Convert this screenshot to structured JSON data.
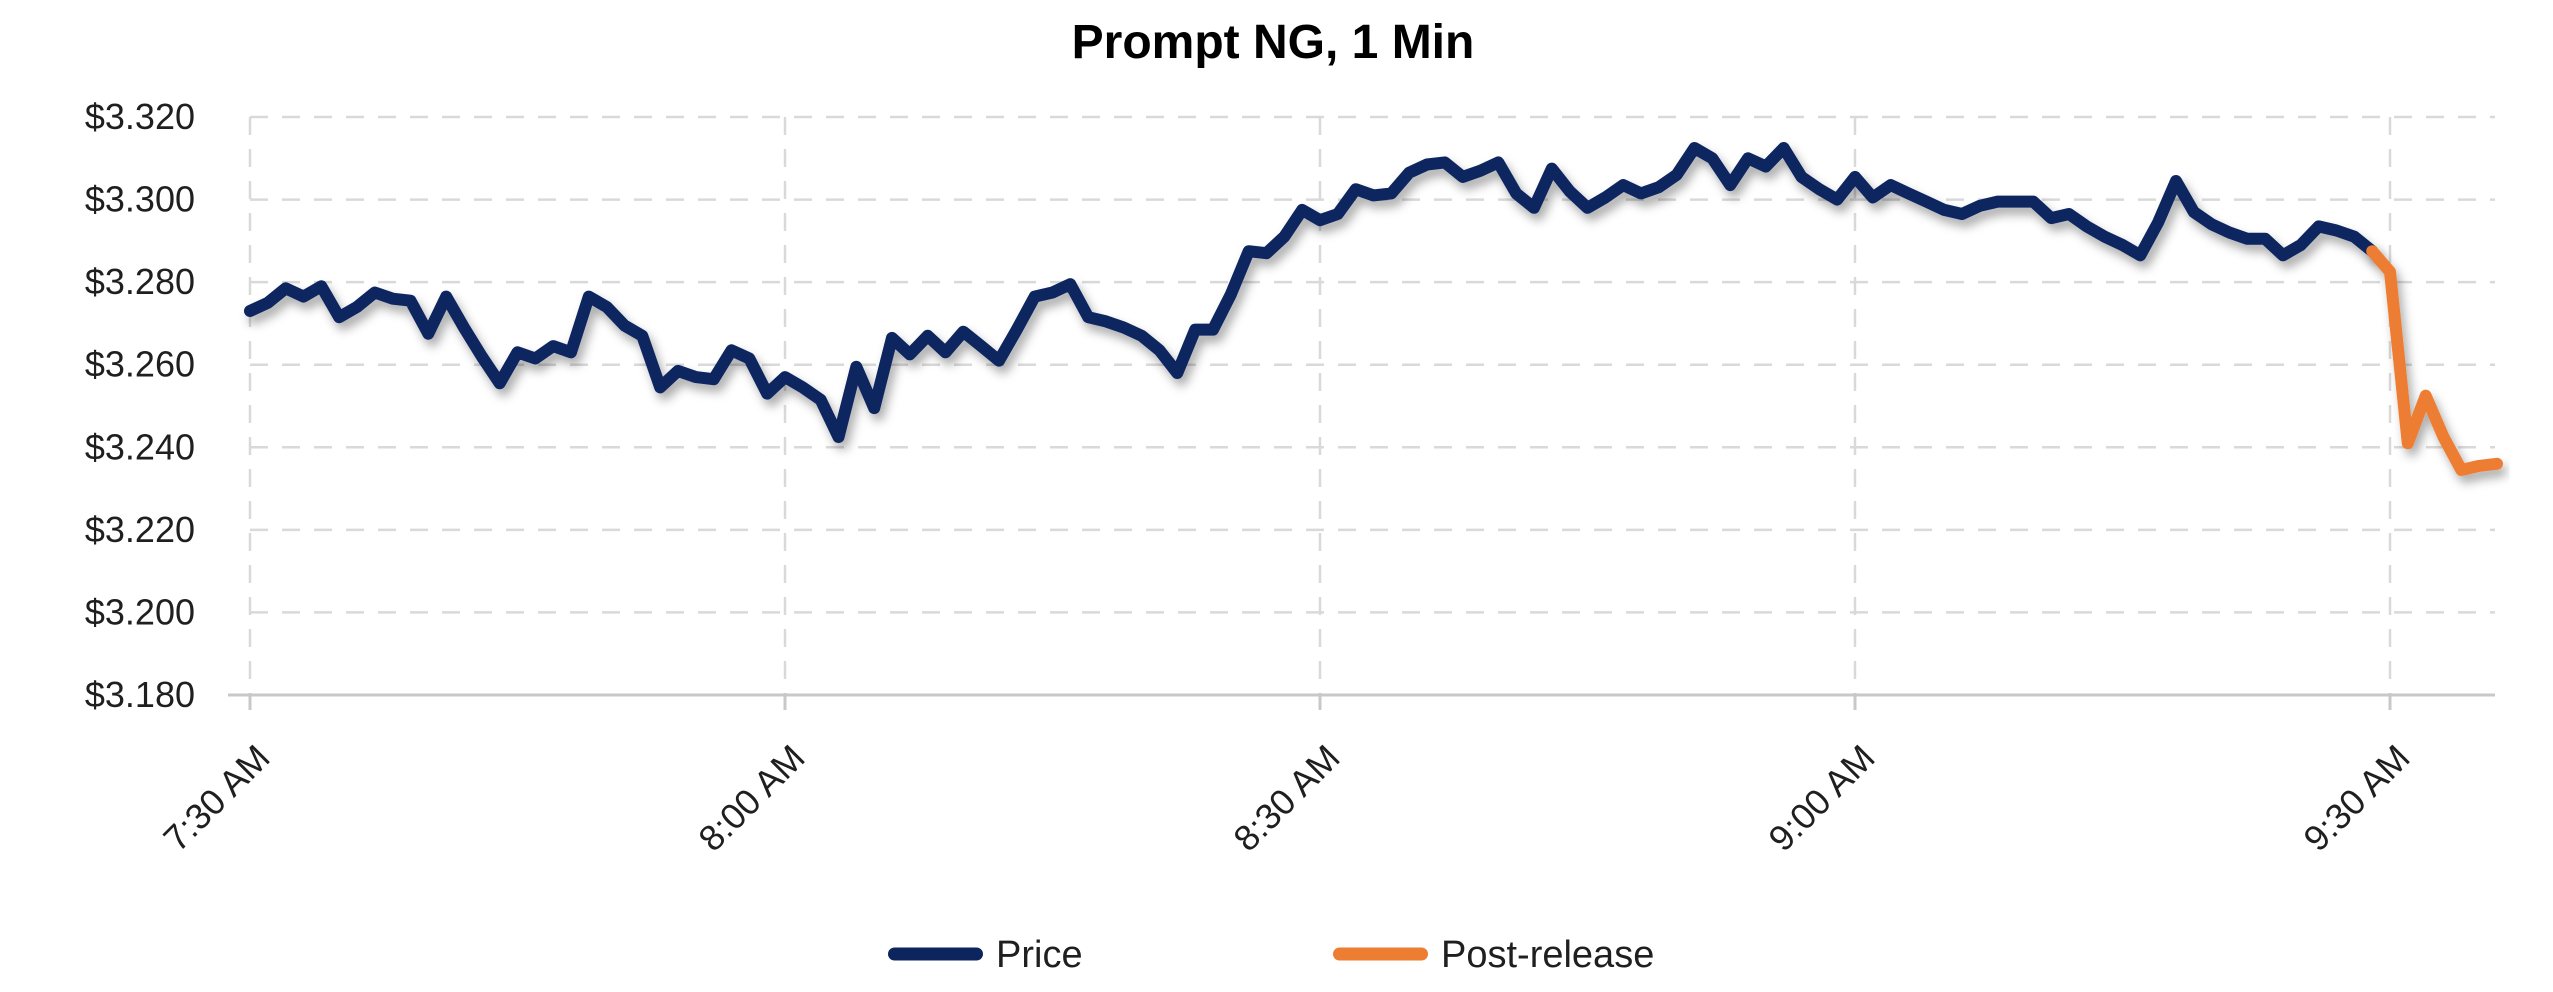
{
  "title": "Prompt NG, 1 Min",
  "chart_data": {
    "type": "line",
    "title": "Prompt NG, 1 Min",
    "grid": "dashed",
    "legend_position": "bottom",
    "x_axis": {
      "start_time": "7:30 AM",
      "interval_minutes": 1,
      "ticks": [
        {
          "label": "7:30 AM",
          "minute": 0
        },
        {
          "label": "8:00 AM",
          "minute": 30
        },
        {
          "label": "8:30 AM",
          "minute": 60
        },
        {
          "label": "9:00 AM",
          "minute": 90
        },
        {
          "label": "9:30 AM",
          "minute": 120
        }
      ],
      "total_minutes": 126
    },
    "y_axis": {
      "min": 3.18,
      "max": 3.32,
      "step": 0.02,
      "tick_labels": [
        "$3.320",
        "$3.300",
        "$3.280",
        "$3.260",
        "$3.240",
        "$3.220",
        "$3.200",
        "$3.180"
      ],
      "tick_values": [
        3.32,
        3.3,
        3.28,
        3.26,
        3.24,
        3.22,
        3.2,
        3.18
      ]
    },
    "series": [
      {
        "name": "Price",
        "color": "#0D255F",
        "start_minute": 0,
        "values": [
          3.273,
          3.275,
          3.2785,
          3.2765,
          3.279,
          3.2715,
          3.274,
          3.2775,
          3.276,
          3.2755,
          3.2675,
          3.2765,
          3.269,
          3.262,
          3.2555,
          3.263,
          3.2615,
          3.2645,
          3.263,
          3.2765,
          3.274,
          3.2695,
          3.267,
          3.2545,
          3.2585,
          3.257,
          3.2565,
          3.2635,
          3.2615,
          3.253,
          3.257,
          3.2545,
          3.2515,
          3.2425,
          3.2595,
          3.2495,
          3.2665,
          3.2625,
          3.267,
          3.263,
          3.268,
          3.2645,
          3.261,
          3.2685,
          3.2765,
          3.2775,
          3.2795,
          3.2715,
          3.2705,
          3.269,
          3.267,
          3.2635,
          3.258,
          3.2685,
          3.2685,
          3.277,
          3.2875,
          3.287,
          3.291,
          3.2975,
          3.295,
          3.2965,
          3.3025,
          3.301,
          3.3015,
          3.3065,
          3.3085,
          3.309,
          3.3055,
          3.307,
          3.309,
          3.3015,
          3.298,
          3.3075,
          3.302,
          3.298,
          3.3005,
          3.3035,
          3.3015,
          3.303,
          3.306,
          3.3125,
          3.31,
          3.3035,
          3.31,
          3.308,
          3.3125,
          3.3055,
          3.3025,
          3.3,
          3.3055,
          3.3005,
          3.3035,
          3.3015,
          3.2995,
          3.2975,
          3.2965,
          3.2985,
          3.2995,
          3.2995,
          3.2995,
          3.2955,
          3.2965,
          3.2935,
          3.291,
          3.289,
          3.2865,
          3.2945,
          3.3045,
          3.297,
          3.294,
          3.292,
          3.2905,
          3.2905,
          3.2865,
          3.289,
          3.2935,
          3.2925,
          3.291,
          3.2875
        ]
      },
      {
        "name": "Post-release",
        "color": "#ED7D31",
        "start_minute": 119,
        "values": [
          3.2875,
          3.2825,
          3.241,
          3.2525,
          3.2425,
          3.2345,
          3.2355,
          3.236
        ]
      }
    ]
  },
  "legend": {
    "items": [
      {
        "label": "Price",
        "color": "#0D255F"
      },
      {
        "label": "Post-release",
        "color": "#ED7D31"
      }
    ]
  },
  "colors": {
    "background": "#ffffff",
    "gridline": "#D9D9D9",
    "axis_line": "#C8C8C8",
    "tick_mark": "#C8C8C8",
    "price_line": "#0D255F",
    "post_release_line": "#ED7D31",
    "axis_text": "#1f1f1f",
    "title_text": "#000000"
  }
}
